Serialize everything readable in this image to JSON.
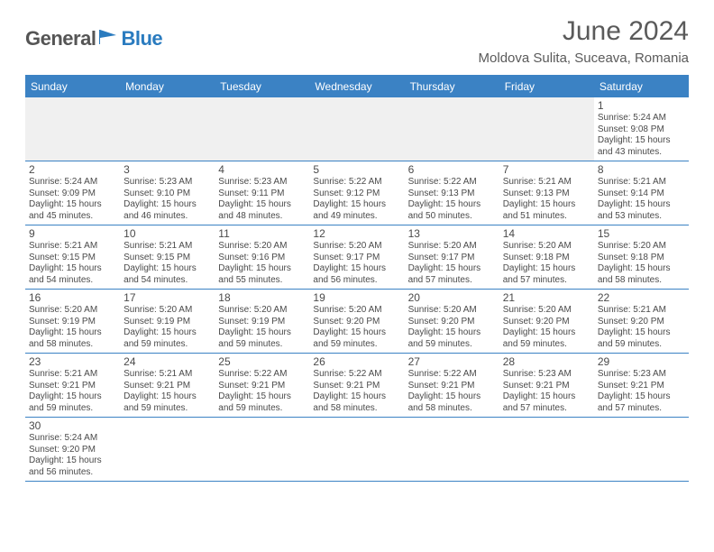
{
  "brand": {
    "part1": "General",
    "part2": "Blue"
  },
  "colors": {
    "accent": "#3b82c4",
    "text": "#4a4a4a",
    "heading": "#5a5a5a",
    "first_week_bg": "#f0f0f0",
    "white": "#ffffff"
  },
  "header": {
    "month_title": "June 2024",
    "location": "Moldova Sulita, Suceava, Romania"
  },
  "weekdays": [
    "Sunday",
    "Monday",
    "Tuesday",
    "Wednesday",
    "Thursday",
    "Friday",
    "Saturday"
  ],
  "weeks": [
    [
      null,
      null,
      null,
      null,
      null,
      null,
      {
        "n": "1",
        "sunrise": "Sunrise: 5:24 AM",
        "sunset": "Sunset: 9:08 PM",
        "daylight1": "Daylight: 15 hours",
        "daylight2": "and 43 minutes."
      }
    ],
    [
      {
        "n": "2",
        "sunrise": "Sunrise: 5:24 AM",
        "sunset": "Sunset: 9:09 PM",
        "daylight1": "Daylight: 15 hours",
        "daylight2": "and 45 minutes."
      },
      {
        "n": "3",
        "sunrise": "Sunrise: 5:23 AM",
        "sunset": "Sunset: 9:10 PM",
        "daylight1": "Daylight: 15 hours",
        "daylight2": "and 46 minutes."
      },
      {
        "n": "4",
        "sunrise": "Sunrise: 5:23 AM",
        "sunset": "Sunset: 9:11 PM",
        "daylight1": "Daylight: 15 hours",
        "daylight2": "and 48 minutes."
      },
      {
        "n": "5",
        "sunrise": "Sunrise: 5:22 AM",
        "sunset": "Sunset: 9:12 PM",
        "daylight1": "Daylight: 15 hours",
        "daylight2": "and 49 minutes."
      },
      {
        "n": "6",
        "sunrise": "Sunrise: 5:22 AM",
        "sunset": "Sunset: 9:13 PM",
        "daylight1": "Daylight: 15 hours",
        "daylight2": "and 50 minutes."
      },
      {
        "n": "7",
        "sunrise": "Sunrise: 5:21 AM",
        "sunset": "Sunset: 9:13 PM",
        "daylight1": "Daylight: 15 hours",
        "daylight2": "and 51 minutes."
      },
      {
        "n": "8",
        "sunrise": "Sunrise: 5:21 AM",
        "sunset": "Sunset: 9:14 PM",
        "daylight1": "Daylight: 15 hours",
        "daylight2": "and 53 minutes."
      }
    ],
    [
      {
        "n": "9",
        "sunrise": "Sunrise: 5:21 AM",
        "sunset": "Sunset: 9:15 PM",
        "daylight1": "Daylight: 15 hours",
        "daylight2": "and 54 minutes."
      },
      {
        "n": "10",
        "sunrise": "Sunrise: 5:21 AM",
        "sunset": "Sunset: 9:15 PM",
        "daylight1": "Daylight: 15 hours",
        "daylight2": "and 54 minutes."
      },
      {
        "n": "11",
        "sunrise": "Sunrise: 5:20 AM",
        "sunset": "Sunset: 9:16 PM",
        "daylight1": "Daylight: 15 hours",
        "daylight2": "and 55 minutes."
      },
      {
        "n": "12",
        "sunrise": "Sunrise: 5:20 AM",
        "sunset": "Sunset: 9:17 PM",
        "daylight1": "Daylight: 15 hours",
        "daylight2": "and 56 minutes."
      },
      {
        "n": "13",
        "sunrise": "Sunrise: 5:20 AM",
        "sunset": "Sunset: 9:17 PM",
        "daylight1": "Daylight: 15 hours",
        "daylight2": "and 57 minutes."
      },
      {
        "n": "14",
        "sunrise": "Sunrise: 5:20 AM",
        "sunset": "Sunset: 9:18 PM",
        "daylight1": "Daylight: 15 hours",
        "daylight2": "and 57 minutes."
      },
      {
        "n": "15",
        "sunrise": "Sunrise: 5:20 AM",
        "sunset": "Sunset: 9:18 PM",
        "daylight1": "Daylight: 15 hours",
        "daylight2": "and 58 minutes."
      }
    ],
    [
      {
        "n": "16",
        "sunrise": "Sunrise: 5:20 AM",
        "sunset": "Sunset: 9:19 PM",
        "daylight1": "Daylight: 15 hours",
        "daylight2": "and 58 minutes."
      },
      {
        "n": "17",
        "sunrise": "Sunrise: 5:20 AM",
        "sunset": "Sunset: 9:19 PM",
        "daylight1": "Daylight: 15 hours",
        "daylight2": "and 59 minutes."
      },
      {
        "n": "18",
        "sunrise": "Sunrise: 5:20 AM",
        "sunset": "Sunset: 9:19 PM",
        "daylight1": "Daylight: 15 hours",
        "daylight2": "and 59 minutes."
      },
      {
        "n": "19",
        "sunrise": "Sunrise: 5:20 AM",
        "sunset": "Sunset: 9:20 PM",
        "daylight1": "Daylight: 15 hours",
        "daylight2": "and 59 minutes."
      },
      {
        "n": "20",
        "sunrise": "Sunrise: 5:20 AM",
        "sunset": "Sunset: 9:20 PM",
        "daylight1": "Daylight: 15 hours",
        "daylight2": "and 59 minutes."
      },
      {
        "n": "21",
        "sunrise": "Sunrise: 5:20 AM",
        "sunset": "Sunset: 9:20 PM",
        "daylight1": "Daylight: 15 hours",
        "daylight2": "and 59 minutes."
      },
      {
        "n": "22",
        "sunrise": "Sunrise: 5:21 AM",
        "sunset": "Sunset: 9:20 PM",
        "daylight1": "Daylight: 15 hours",
        "daylight2": "and 59 minutes."
      }
    ],
    [
      {
        "n": "23",
        "sunrise": "Sunrise: 5:21 AM",
        "sunset": "Sunset: 9:21 PM",
        "daylight1": "Daylight: 15 hours",
        "daylight2": "and 59 minutes."
      },
      {
        "n": "24",
        "sunrise": "Sunrise: 5:21 AM",
        "sunset": "Sunset: 9:21 PM",
        "daylight1": "Daylight: 15 hours",
        "daylight2": "and 59 minutes."
      },
      {
        "n": "25",
        "sunrise": "Sunrise: 5:22 AM",
        "sunset": "Sunset: 9:21 PM",
        "daylight1": "Daylight: 15 hours",
        "daylight2": "and 59 minutes."
      },
      {
        "n": "26",
        "sunrise": "Sunrise: 5:22 AM",
        "sunset": "Sunset: 9:21 PM",
        "daylight1": "Daylight: 15 hours",
        "daylight2": "and 58 minutes."
      },
      {
        "n": "27",
        "sunrise": "Sunrise: 5:22 AM",
        "sunset": "Sunset: 9:21 PM",
        "daylight1": "Daylight: 15 hours",
        "daylight2": "and 58 minutes."
      },
      {
        "n": "28",
        "sunrise": "Sunrise: 5:23 AM",
        "sunset": "Sunset: 9:21 PM",
        "daylight1": "Daylight: 15 hours",
        "daylight2": "and 57 minutes."
      },
      {
        "n": "29",
        "sunrise": "Sunrise: 5:23 AM",
        "sunset": "Sunset: 9:21 PM",
        "daylight1": "Daylight: 15 hours",
        "daylight2": "and 57 minutes."
      }
    ],
    [
      {
        "n": "30",
        "sunrise": "Sunrise: 5:24 AM",
        "sunset": "Sunset: 9:20 PM",
        "daylight1": "Daylight: 15 hours",
        "daylight2": "and 56 minutes."
      },
      null,
      null,
      null,
      null,
      null,
      null
    ]
  ]
}
